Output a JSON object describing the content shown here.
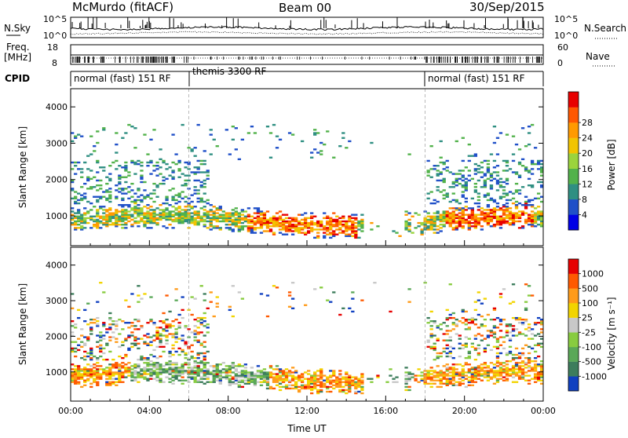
{
  "header": {
    "station": "McMurdo (fitACF)",
    "beam": "Beam 00",
    "date": "30/Sep/2015"
  },
  "noise_panel": {
    "left_label": "N.Sky",
    "right_label": "N.Search",
    "left_ticks": [
      "10^5",
      "10^0"
    ],
    "right_ticks": [
      "10^5",
      "10^0"
    ]
  },
  "freq_panel": {
    "left_label_line1": "Freq.",
    "left_label_line2": "[MHz]",
    "right_label": "Nave",
    "left_ticks": [
      "18",
      "8"
    ],
    "right_ticks": [
      "60",
      "0"
    ]
  },
  "cpid_panel": {
    "label": "CPID",
    "segments": [
      {
        "start_hour": 0,
        "end_hour": 6,
        "text": "normal (fast) 151 RF"
      },
      {
        "start_hour": 6,
        "end_hour": 18,
        "text": "themis 3300 RF"
      },
      {
        "start_hour": 18,
        "end_hour": 24,
        "text": "normal (fast) 151 RF"
      }
    ]
  },
  "chart_data": [
    {
      "type": "heatmap",
      "name": "power",
      "ylabel": "Slant Range [km]",
      "ylim": [
        180,
        4500
      ],
      "xlim": [
        0,
        24
      ],
      "yticks": [
        "1000",
        "2000",
        "3000",
        "4000"
      ],
      "colorbar": {
        "label": "Power [dB]",
        "ticks": [
          "4",
          "8",
          "12",
          "16",
          "20",
          "24",
          "28"
        ],
        "colors": [
          "#0000e6",
          "#2050c8",
          "#2f8f82",
          "#52b24b",
          "#9bd43d",
          "#f2c400",
          "#ff9a00",
          "#ff5800",
          "#e80000"
        ]
      }
    },
    {
      "type": "heatmap",
      "name": "velocity",
      "ylabel": "Slant Range [km]",
      "xlabel": "Time UT",
      "ylim": [
        180,
        4500
      ],
      "xlim": [
        0,
        24
      ],
      "yticks": [
        "1000",
        "2000",
        "3000",
        "4000"
      ],
      "xticks": [
        "00:00",
        "04:00",
        "08:00",
        "12:00",
        "16:00",
        "20:00",
        "00:00"
      ],
      "colorbar": {
        "label": "Velocity [m s⁻¹]",
        "ticks": [
          "1000",
          "500",
          "100",
          "25",
          "-25",
          "-100",
          "-500",
          "-1000"
        ],
        "colors": [
          "#1040c0",
          "#3d7d5c",
          "#5aa858",
          "#88cc40",
          "#c8c8c8",
          "#f2d400",
          "#ff9b1a",
          "#ff5a00",
          "#e60000"
        ]
      }
    }
  ]
}
